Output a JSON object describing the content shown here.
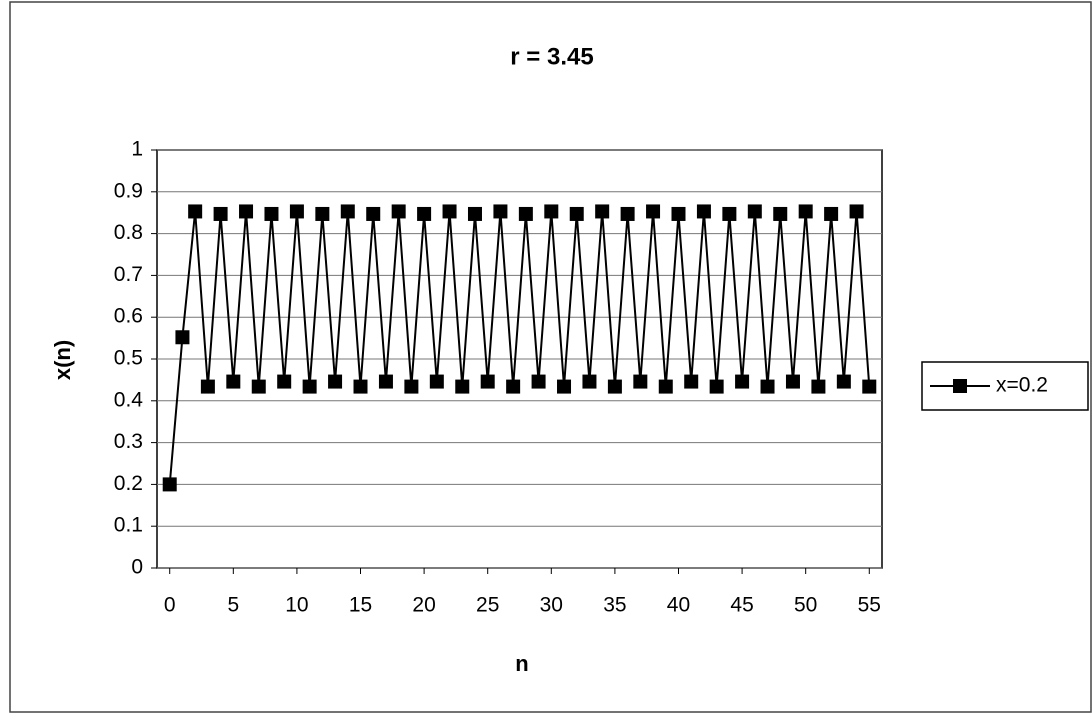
{
  "chart_data": {
    "type": "line",
    "title": "r = 3.45",
    "x_label": "n",
    "y_label": "x(n)",
    "x": [
      0,
      1,
      2,
      3,
      4,
      5,
      6,
      7,
      8,
      9,
      10,
      11,
      12,
      13,
      14,
      15,
      16,
      17,
      18,
      19,
      20,
      21,
      22,
      23,
      24,
      25,
      26,
      27,
      28,
      29,
      30,
      31,
      32,
      33,
      34,
      35,
      36,
      37,
      38,
      39,
      40,
      41,
      42,
      43,
      44,
      45,
      46,
      47,
      48,
      49,
      50,
      51,
      52,
      53,
      54,
      55
    ],
    "series": [
      {
        "name": "x=0.2",
        "color": "#000000",
        "values": [
          0.2,
          0.552,
          0.853,
          0.434,
          0.847,
          0.446,
          0.853,
          0.434,
          0.847,
          0.446,
          0.853,
          0.434,
          0.847,
          0.446,
          0.853,
          0.434,
          0.847,
          0.446,
          0.853,
          0.434,
          0.847,
          0.446,
          0.853,
          0.434,
          0.847,
          0.446,
          0.853,
          0.434,
          0.847,
          0.446,
          0.853,
          0.434,
          0.847,
          0.446,
          0.853,
          0.434,
          0.847,
          0.446,
          0.853,
          0.434,
          0.847,
          0.446,
          0.853,
          0.434,
          0.847,
          0.446,
          0.853,
          0.434,
          0.847,
          0.446,
          0.853,
          0.434,
          0.847,
          0.446,
          0.853,
          0.434
        ]
      }
    ],
    "xlim": [
      -1,
      56
    ],
    "xticks": [
      0,
      5,
      10,
      15,
      20,
      25,
      30,
      35,
      40,
      45,
      50,
      55
    ],
    "ylim": [
      0,
      1
    ],
    "yticks": [
      0,
      0.1,
      0.2,
      0.3,
      0.4,
      0.5,
      0.6,
      0.7,
      0.8,
      0.9,
      1
    ],
    "grid": true,
    "legend": "right"
  }
}
